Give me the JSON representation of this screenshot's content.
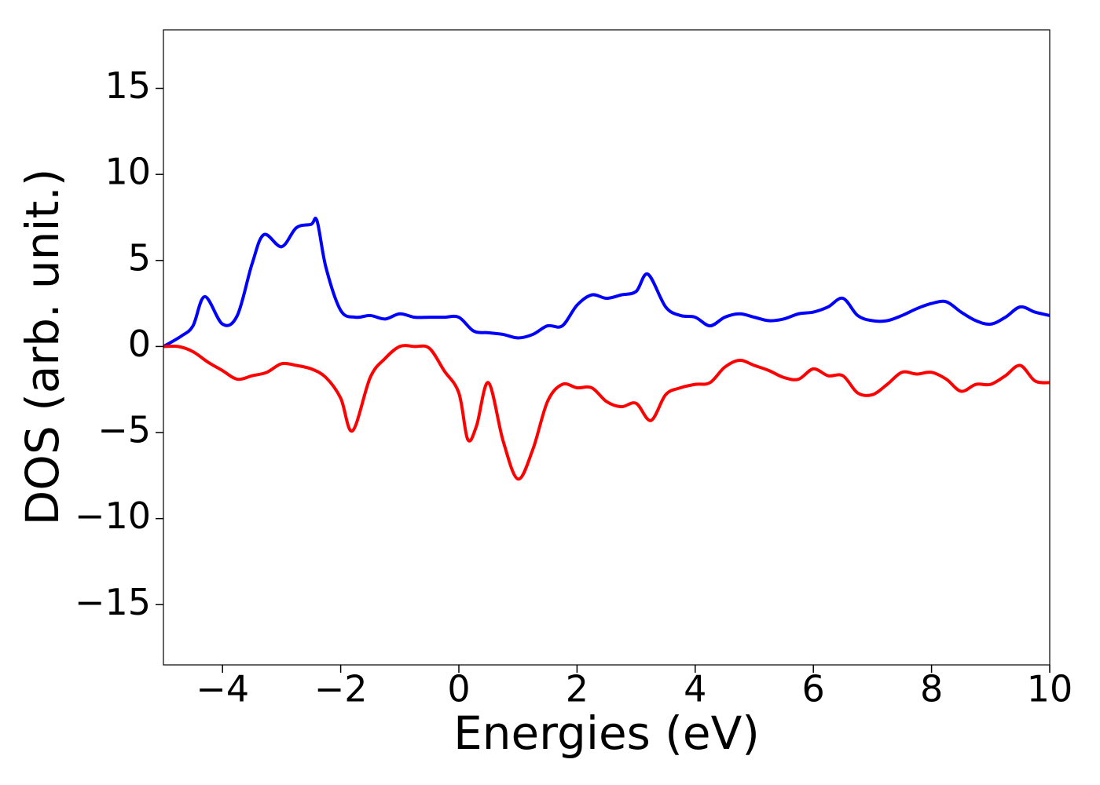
{
  "chart_data": {
    "type": "line",
    "xlabel": "Energies (eV)",
    "ylabel": "DOS (arb. unit.)",
    "xlim": [
      -5,
      10
    ],
    "ylim": [
      -18.5,
      18.4
    ],
    "xticks": [
      {
        "value": -4,
        "label": "−4"
      },
      {
        "value": -2,
        "label": "−2"
      },
      0,
      2,
      4,
      6,
      8,
      10
    ],
    "yticks": [
      {
        "value": -15,
        "label": "−15"
      },
      {
        "value": -10,
        "label": "−10"
      },
      {
        "value": -5,
        "label": "−5"
      },
      0,
      5,
      10,
      15
    ],
    "series": [
      {
        "color": "#0000ff",
        "x": [
          -5,
          -4.7,
          -4.5,
          -4.3,
          -4,
          -3.75,
          -3.5,
          -3.3,
          -3,
          -2.75,
          -2.5,
          -2.4,
          -2.25,
          -2,
          -1.75,
          -1.5,
          -1.25,
          -1,
          -0.75,
          -0.5,
          -0.25,
          0,
          0.25,
          0.5,
          0.75,
          1,
          1.25,
          1.5,
          1.75,
          2,
          2.25,
          2.5,
          2.75,
          3,
          3.2,
          3.5,
          3.75,
          4,
          4.25,
          4.5,
          4.75,
          5,
          5.25,
          5.5,
          5.75,
          6,
          6.25,
          6.5,
          6.75,
          7,
          7.25,
          7.5,
          7.75,
          8,
          8.25,
          8.5,
          8.75,
          9,
          9.25,
          9.5,
          9.75,
          10
        ],
        "values": [
          0,
          0.6,
          1.2,
          2.9,
          1.3,
          1.8,
          4.8,
          6.5,
          5.8,
          6.9,
          7.1,
          7.3,
          4.6,
          2.1,
          1.7,
          1.8,
          1.6,
          1.9,
          1.7,
          1.7,
          1.7,
          1.7,
          0.9,
          0.8,
          0.7,
          0.5,
          0.7,
          1.2,
          1.2,
          2.4,
          3.0,
          2.8,
          3.0,
          3.2,
          4.2,
          2.3,
          1.8,
          1.7,
          1.2,
          1.7,
          1.9,
          1.7,
          1.5,
          1.6,
          1.9,
          2.0,
          2.3,
          2.8,
          1.8,
          1.5,
          1.5,
          1.8,
          2.2,
          2.5,
          2.6,
          2.0,
          1.5,
          1.3,
          1.7,
          2.3,
          2.0,
          1.8
        ]
      },
      {
        "color": "#ff0000",
        "x": [
          -5,
          -4.75,
          -4.5,
          -4.25,
          -4,
          -3.75,
          -3.5,
          -3.25,
          -3,
          -2.75,
          -2.5,
          -2.25,
          -2,
          -1.8,
          -1.5,
          -1.25,
          -1,
          -0.75,
          -0.5,
          -0.25,
          0,
          0.15,
          0.3,
          0.5,
          0.75,
          1,
          1.25,
          1.5,
          1.75,
          2,
          2.25,
          2.5,
          2.75,
          3,
          3.25,
          3.5,
          3.75,
          4,
          4.25,
          4.5,
          4.75,
          5,
          5.25,
          5.5,
          5.75,
          6,
          6.25,
          6.5,
          6.75,
          7,
          7.25,
          7.5,
          7.75,
          8,
          8.25,
          8.5,
          8.75,
          9,
          9.25,
          9.5,
          9.75,
          10
        ],
        "values": [
          0,
          0,
          -0.3,
          -0.9,
          -1.4,
          -1.9,
          -1.7,
          -1.5,
          -1.0,
          -1.1,
          -1.3,
          -1.8,
          -3.0,
          -4.9,
          -1.8,
          -0.7,
          0,
          0,
          -0.1,
          -1.4,
          -2.7,
          -5.4,
          -4.6,
          -2.1,
          -5.5,
          -7.7,
          -6.0,
          -3.2,
          -2.2,
          -2.4,
          -2.4,
          -3.2,
          -3.5,
          -3.3,
          -4.3,
          -2.8,
          -2.4,
          -2.2,
          -2.1,
          -1.2,
          -0.8,
          -1.1,
          -1.4,
          -1.8,
          -1.9,
          -1.3,
          -1.7,
          -1.7,
          -2.7,
          -2.8,
          -2.2,
          -1.5,
          -1.6,
          -1.5,
          -1.9,
          -2.6,
          -2.2,
          -2.2,
          -1.7,
          -1.1,
          -2.0,
          -2.1
        ]
      }
    ]
  }
}
